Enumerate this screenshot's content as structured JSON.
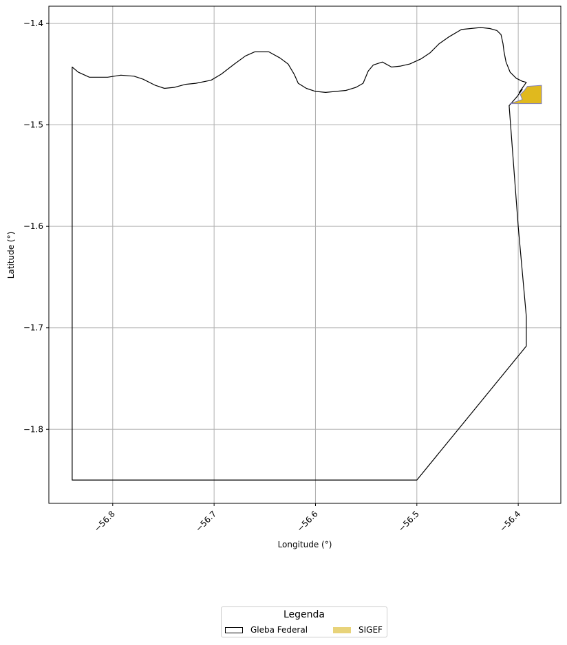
{
  "chart_data": {
    "type": "map",
    "xlabel": "Longitude (°)",
    "ylabel": "Latitude (°)",
    "xlim": [
      -56.863,
      -56.358
    ],
    "ylim": [
      -1.873,
      -1.383
    ],
    "x_ticks": [
      -56.8,
      -56.7,
      -56.6,
      -56.5,
      -56.4
    ],
    "x_tick_labels": [
      "−56.8",
      "−56.7",
      "−56.6",
      "−56.5",
      "−56.4"
    ],
    "y_ticks": [
      -1.4,
      -1.5,
      -1.6,
      -1.7,
      -1.8
    ],
    "y_tick_labels": [
      "−1.4",
      "−1.5",
      "−1.6",
      "−1.7",
      "−1.8"
    ],
    "grid": true,
    "legend": {
      "title": "Legenda",
      "placement": "bottom-center",
      "entries": [
        {
          "label": "Gleba Federal",
          "style": "outline"
        },
        {
          "label": "SIGEF",
          "style": "fill"
        }
      ]
    },
    "series": [
      {
        "name": "Gleba Federal",
        "geometry": "polygon",
        "stroke": "#000000",
        "fill": "none",
        "points": [
          [
            -56.84,
            -1.85
          ],
          [
            -56.5,
            -1.85
          ],
          [
            -56.392,
            -1.718
          ],
          [
            -56.392,
            -1.689
          ],
          [
            -56.4,
            -1.6
          ],
          [
            -56.409,
            -1.481
          ],
          [
            -56.401,
            -1.472
          ],
          [
            -56.396,
            -1.465
          ],
          [
            -56.399,
            -1.468
          ],
          [
            -56.392,
            -1.458
          ],
          [
            -56.396,
            -1.457
          ],
          [
            -56.402,
            -1.454
          ],
          [
            -56.408,
            -1.448
          ],
          [
            -56.412,
            -1.438
          ],
          [
            -56.414,
            -1.428
          ],
          [
            -56.415,
            -1.42
          ],
          [
            -56.417,
            -1.411
          ],
          [
            -56.421,
            -1.407
          ],
          [
            -56.428,
            -1.405
          ],
          [
            -56.437,
            -1.404
          ],
          [
            -56.447,
            -1.405
          ],
          [
            -56.456,
            -1.406
          ],
          [
            -56.468,
            -1.413
          ],
          [
            -56.478,
            -1.42
          ],
          [
            -56.487,
            -1.429
          ],
          [
            -56.496,
            -1.435
          ],
          [
            -56.507,
            -1.44
          ],
          [
            -56.516,
            -1.442
          ],
          [
            -56.525,
            -1.443
          ],
          [
            -56.534,
            -1.438
          ],
          [
            -56.543,
            -1.441
          ],
          [
            -56.548,
            -1.447
          ],
          [
            -56.553,
            -1.459
          ],
          [
            -56.56,
            -1.463
          ],
          [
            -56.57,
            -1.466
          ],
          [
            -56.59,
            -1.468
          ],
          [
            -56.6,
            -1.467
          ],
          [
            -56.609,
            -1.464
          ],
          [
            -56.617,
            -1.459
          ],
          [
            -56.621,
            -1.45
          ],
          [
            -56.627,
            -1.44
          ],
          [
            -56.635,
            -1.434
          ],
          [
            -56.646,
            -1.428
          ],
          [
            -56.66,
            -1.428
          ],
          [
            -56.669,
            -1.432
          ],
          [
            -56.68,
            -1.44
          ],
          [
            -56.693,
            -1.45
          ],
          [
            -56.703,
            -1.456
          ],
          [
            -56.718,
            -1.459
          ],
          [
            -56.728,
            -1.46
          ],
          [
            -56.739,
            -1.463
          ],
          [
            -56.749,
            -1.464
          ],
          [
            -56.758,
            -1.461
          ],
          [
            -56.77,
            -1.455
          ],
          [
            -56.779,
            -1.452
          ],
          [
            -56.792,
            -1.451
          ],
          [
            -56.805,
            -1.453
          ],
          [
            -56.815,
            -1.453
          ],
          [
            -56.823,
            -1.453
          ],
          [
            -56.834,
            -1.448
          ],
          [
            -56.84,
            -1.443
          ]
        ]
      },
      {
        "name": "SIGEF",
        "geometry": "polygon",
        "stroke": "#7f7fbf",
        "fill": "#e0b91e",
        "points": [
          [
            -56.408,
            -1.479
          ],
          [
            -56.396,
            -1.475
          ],
          [
            -56.398,
            -1.47
          ],
          [
            -56.394,
            -1.466
          ],
          [
            -56.391,
            -1.462
          ],
          [
            -56.377,
            -1.461
          ],
          [
            -56.377,
            -1.479
          ]
        ]
      }
    ],
    "colors": {
      "gleba_outline": "#000000",
      "sigef_fill": "#e0b91e",
      "sigef_legend": "#e8d37a",
      "sigef_edge": "#7f7fbf",
      "grid": "#b0b0b0"
    }
  }
}
